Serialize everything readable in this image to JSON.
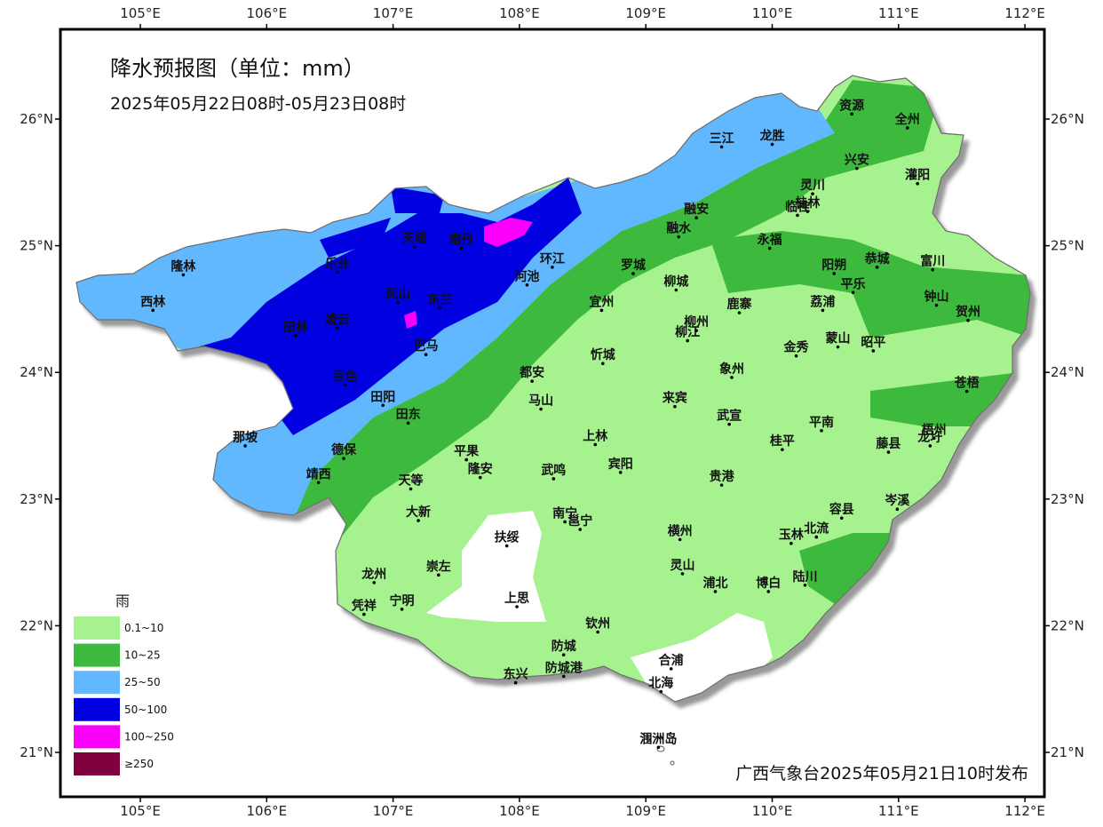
{
  "title": "降水预报图（单位：mm）",
  "period": "2025年05月22日08时-05月23日08时",
  "issuer": "广西气象台2025年05月21日10时发布",
  "axes": {
    "lon_labels": [
      "105°E",
      "106°E",
      "107°E",
      "108°E",
      "109°E",
      "110°E",
      "111°E",
      "112°E"
    ],
    "lat_labels": [
      "26°N",
      "25°N",
      "24°N",
      "23°N",
      "22°N",
      "21°N"
    ],
    "lon_range": [
      104.4,
      112.2
    ],
    "lat_range": [
      20.6,
      26.7
    ]
  },
  "legend": {
    "title": "雨",
    "items": [
      {
        "label": "0.1~10",
        "color": "#a6f28f"
      },
      {
        "label": "10~25",
        "color": "#3dba3d"
      },
      {
        "label": "25~50",
        "color": "#61b8ff"
      },
      {
        "label": "50~100",
        "color": "#0000e1"
      },
      {
        "label": "100~250",
        "color": "#fa00fa"
      },
      {
        "label": "≥250",
        "color": "#800040"
      }
    ]
  },
  "cities": [
    {
      "name": "资源",
      "lon": 110.63,
      "lat": 26.04
    },
    {
      "name": "全州",
      "lon": 111.07,
      "lat": 25.93
    },
    {
      "name": "三江",
      "lon": 109.6,
      "lat": 25.78
    },
    {
      "name": "龙胜",
      "lon": 110.0,
      "lat": 25.8
    },
    {
      "name": "兴安",
      "lon": 110.67,
      "lat": 25.61
    },
    {
      "name": "灌阳",
      "lon": 111.15,
      "lat": 25.49
    },
    {
      "name": "灵川",
      "lon": 110.32,
      "lat": 25.41
    },
    {
      "name": "桂林",
      "lon": 110.28,
      "lat": 25.27
    },
    {
      "name": "临桂",
      "lon": 110.2,
      "lat": 25.24
    },
    {
      "name": "融安",
      "lon": 109.4,
      "lat": 25.22
    },
    {
      "name": "融水",
      "lon": 109.26,
      "lat": 25.07
    },
    {
      "name": "天峨",
      "lon": 107.17,
      "lat": 24.99
    },
    {
      "name": "南丹",
      "lon": 107.54,
      "lat": 24.98
    },
    {
      "name": "永福",
      "lon": 109.98,
      "lat": 24.98
    },
    {
      "name": "隆林",
      "lon": 105.34,
      "lat": 24.77
    },
    {
      "name": "乐业",
      "lon": 106.56,
      "lat": 24.79
    },
    {
      "name": "环江",
      "lon": 108.26,
      "lat": 24.83
    },
    {
      "name": "罗城",
      "lon": 108.9,
      "lat": 24.78
    },
    {
      "name": "阳朔",
      "lon": 110.49,
      "lat": 24.78
    },
    {
      "name": "恭城",
      "lon": 110.83,
      "lat": 24.83
    },
    {
      "name": "富川",
      "lon": 111.27,
      "lat": 24.81
    },
    {
      "name": "河池",
      "lon": 108.06,
      "lat": 24.69
    },
    {
      "name": "平乐",
      "lon": 110.64,
      "lat": 24.63
    },
    {
      "name": "钟山",
      "lon": 111.3,
      "lat": 24.53
    },
    {
      "name": "西林",
      "lon": 105.1,
      "lat": 24.49
    },
    {
      "name": "凤山",
      "lon": 107.04,
      "lat": 24.55
    },
    {
      "name": "东兰",
      "lon": 107.37,
      "lat": 24.51
    },
    {
      "name": "柳城",
      "lon": 109.24,
      "lat": 24.65
    },
    {
      "name": "宜州",
      "lon": 108.65,
      "lat": 24.49
    },
    {
      "name": "鹿寨",
      "lon": 109.74,
      "lat": 24.47
    },
    {
      "name": "荔浦",
      "lon": 110.4,
      "lat": 24.49
    },
    {
      "name": "贺州",
      "lon": 111.55,
      "lat": 24.41
    },
    {
      "name": "凌云",
      "lon": 106.56,
      "lat": 24.35
    },
    {
      "name": "柳州",
      "lon": 109.4,
      "lat": 24.33
    },
    {
      "name": "田林",
      "lon": 106.23,
      "lat": 24.29
    },
    {
      "name": "柳江",
      "lon": 109.33,
      "lat": 24.25
    },
    {
      "name": "蒙山",
      "lon": 110.52,
      "lat": 24.2
    },
    {
      "name": "昭平",
      "lon": 110.8,
      "lat": 24.17
    },
    {
      "name": "巴马",
      "lon": 107.26,
      "lat": 24.14
    },
    {
      "name": "金秀",
      "lon": 110.19,
      "lat": 24.13
    },
    {
      "name": "忻城",
      "lon": 108.66,
      "lat": 24.07
    },
    {
      "name": "百色",
      "lon": 106.62,
      "lat": 23.9
    },
    {
      "name": "都安",
      "lon": 108.1,
      "lat": 23.93
    },
    {
      "name": "象州",
      "lon": 109.68,
      "lat": 23.96
    },
    {
      "name": "苍梧",
      "lon": 111.54,
      "lat": 23.85
    },
    {
      "name": "马山",
      "lon": 108.17,
      "lat": 23.71
    },
    {
      "name": "来宾",
      "lon": 109.23,
      "lat": 23.73
    },
    {
      "name": "田阳",
      "lon": 106.92,
      "lat": 23.74
    },
    {
      "name": "田东",
      "lon": 107.12,
      "lat": 23.6
    },
    {
      "name": "平南",
      "lon": 110.39,
      "lat": 23.54
    },
    {
      "name": "武宣",
      "lon": 109.66,
      "lat": 23.59
    },
    {
      "name": "梧州",
      "lon": 111.28,
      "lat": 23.48
    },
    {
      "name": "那坡",
      "lon": 105.83,
      "lat": 23.42
    },
    {
      "name": "上林",
      "lon": 108.6,
      "lat": 23.43
    },
    {
      "name": "桂平",
      "lon": 110.08,
      "lat": 23.39
    },
    {
      "name": "藤县",
      "lon": 110.92,
      "lat": 23.37
    },
    {
      "name": "龙圩",
      "lon": 111.25,
      "lat": 23.42
    },
    {
      "name": "德保",
      "lon": 106.61,
      "lat": 23.32
    },
    {
      "name": "平果",
      "lon": 107.58,
      "lat": 23.31
    },
    {
      "name": "宾阳",
      "lon": 108.8,
      "lat": 23.21
    },
    {
      "name": "靖西",
      "lon": 106.41,
      "lat": 23.13
    },
    {
      "name": "天等",
      "lon": 107.14,
      "lat": 23.08
    },
    {
      "name": "隆安",
      "lon": 107.69,
      "lat": 23.17
    },
    {
      "name": "武鸣",
      "lon": 108.27,
      "lat": 23.16
    },
    {
      "name": "贵港",
      "lon": 109.6,
      "lat": 23.11
    },
    {
      "name": "岑溪",
      "lon": 110.99,
      "lat": 22.92
    },
    {
      "name": "大新",
      "lon": 107.2,
      "lat": 22.83
    },
    {
      "name": "南宁",
      "lon": 108.36,
      "lat": 22.82
    },
    {
      "name": "容县",
      "lon": 110.55,
      "lat": 22.85
    },
    {
      "name": "邕宁",
      "lon": 108.48,
      "lat": 22.76
    },
    {
      "name": "横州",
      "lon": 109.27,
      "lat": 22.68
    },
    {
      "name": "玉林",
      "lon": 110.15,
      "lat": 22.65
    },
    {
      "name": "北流",
      "lon": 110.35,
      "lat": 22.7
    },
    {
      "name": "扶绥",
      "lon": 107.9,
      "lat": 22.63
    },
    {
      "name": "崇左",
      "lon": 107.36,
      "lat": 22.4
    },
    {
      "name": "灵山",
      "lon": 109.29,
      "lat": 22.41
    },
    {
      "name": "龙州",
      "lon": 106.85,
      "lat": 22.34
    },
    {
      "name": "浦北",
      "lon": 109.55,
      "lat": 22.27
    },
    {
      "name": "博白",
      "lon": 109.97,
      "lat": 22.27
    },
    {
      "name": "陆川",
      "lon": 110.26,
      "lat": 22.32
    },
    {
      "name": "上思",
      "lon": 107.98,
      "lat": 22.15
    },
    {
      "name": "凭祥",
      "lon": 106.77,
      "lat": 22.09
    },
    {
      "name": "宁明",
      "lon": 107.07,
      "lat": 22.13
    },
    {
      "name": "钦州",
      "lon": 108.62,
      "lat": 21.95
    },
    {
      "name": "防城",
      "lon": 108.35,
      "lat": 21.77
    },
    {
      "name": "合浦",
      "lon": 109.2,
      "lat": 21.66
    },
    {
      "name": "防城港",
      "lon": 108.35,
      "lat": 21.6
    },
    {
      "name": "东兴",
      "lon": 107.97,
      "lat": 21.55
    },
    {
      "name": "北海",
      "lon": 109.12,
      "lat": 21.48
    },
    {
      "name": "涠洲岛",
      "lon": 109.1,
      "lat": 21.04
    }
  ]
}
